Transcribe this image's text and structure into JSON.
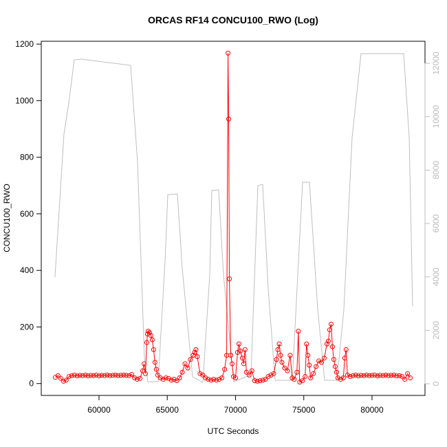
{
  "chart_data": {
    "type": "line",
    "title": "ORCAS RF14 CONCU100_RWO (Log)",
    "x_label": "UTC Seconds",
    "y_label": "CONCU100_RWO",
    "xlim": [
      55770,
      83880
    ],
    "xticks": [
      60000,
      65000,
      70000,
      75000,
      80000
    ],
    "ylim": [
      -42,
      1210
    ],
    "yticks": [
      0,
      200,
      400,
      600,
      800,
      1000,
      1200
    ],
    "y2lim": [
      -438,
      12824
    ],
    "y2ticks": [
      0,
      2000,
      4000,
      6000,
      8000,
      10000,
      12000
    ],
    "y2_color": "#bbbbbb",
    "series": [
      {
        "color": "#ff0000",
        "marker": "circle",
        "x": [
          56800,
          57000,
          57200,
          57400,
          57600,
          57800,
          58000,
          58200,
          58400,
          58600,
          58800,
          59000,
          59200,
          59400,
          59600,
          59800,
          60000,
          60200,
          60400,
          60600,
          60800,
          61000,
          61200,
          61400,
          61600,
          61800,
          62000,
          62200,
          62400,
          62600,
          62800,
          63000,
          63200,
          63300,
          63400,
          63500,
          63550,
          63600,
          63700,
          63800,
          63900,
          64000,
          64100,
          64200,
          64300,
          64500,
          64700,
          64900,
          65100,
          65300,
          65500,
          65700,
          65900,
          66100,
          66300,
          66500,
          66700,
          66900,
          67000,
          67100,
          67200,
          67400,
          67600,
          67800,
          68000,
          68200,
          68400,
          68600,
          68800,
          69000,
          69200,
          69350,
          69450,
          69500,
          69550,
          69650,
          69750,
          69850,
          70000,
          70150,
          70250,
          70350,
          70500,
          70600,
          70700,
          70800,
          71000,
          71200,
          71400,
          71600,
          71800,
          72000,
          72200,
          72400,
          72600,
          72800,
          73000,
          73100,
          73200,
          73300,
          73400,
          73600,
          73800,
          74000,
          74150,
          74300,
          74500,
          74600,
          74700,
          74900,
          75100,
          75200,
          75300,
          75400,
          75500,
          75700,
          75900,
          76100,
          76300,
          76500,
          76700,
          76800,
          76900,
          77000,
          77100,
          77200,
          77300,
          77400,
          77500,
          77700,
          77900,
          78000,
          78100,
          78200,
          78400,
          78600,
          78800,
          79000,
          79200,
          79400,
          79600,
          79800,
          80000,
          80200,
          80400,
          80600,
          80800,
          81000,
          81200,
          81400,
          81600,
          81800,
          82000,
          82200,
          82400,
          82600,
          82800
        ],
        "values": [
          22,
          28,
          18,
          8,
          12,
          25,
          28,
          30,
          27,
          29,
          28,
          30,
          27,
          29,
          28,
          30,
          27,
          29,
          28,
          30,
          28,
          29,
          30,
          28,
          29,
          30,
          29,
          28,
          32,
          20,
          15,
          18,
          45,
          70,
          35,
          145,
          175,
          185,
          180,
          170,
          155,
          120,
          75,
          50,
          30,
          20,
          15,
          20,
          18,
          12,
          15,
          10,
          20,
          40,
          70,
          55,
          85,
          100,
          110,
          120,
          95,
          35,
          30,
          20,
          15,
          12,
          15,
          12,
          15,
          20,
          50,
          100,
          1168,
          935,
          370,
          100,
          70,
          25,
          20,
          110,
          140,
          115,
          90,
          70,
          120,
          40,
          30,
          45,
          10,
          8,
          10,
          12,
          15,
          25,
          30,
          35,
          85,
          120,
          140,
          100,
          75,
          55,
          45,
          100,
          20,
          15,
          40,
          185,
          5,
          10,
          25,
          140,
          100,
          65,
          20,
          35,
          60,
          80,
          75,
          90,
          140,
          150,
          190,
          210,
          130,
          85,
          60,
          40,
          20,
          15,
          20,
          90,
          120,
          30,
          25,
          28,
          30,
          27,
          29,
          28,
          30,
          28,
          29,
          30,
          27,
          29,
          28,
          30,
          28,
          29,
          30,
          27,
          28,
          25,
          15,
          35,
          20
        ]
      },
      {
        "color": "#bebebe",
        "axis": "y2",
        "x": [
          56776,
          57430,
          57783,
          58186,
          58690,
          62317,
          62821,
          63325,
          63577,
          64333,
          64837,
          65038,
          65743,
          66096,
          66852,
          67607,
          68111,
          68262,
          68766,
          69119,
          69875,
          71134,
          71638,
          71991,
          72394,
          72898,
          74157,
          74913,
          75417,
          76021,
          76525,
          77432,
          77936,
          78541,
          79195,
          82319,
          82722,
          82974
        ],
        "values": [
          3991,
          9347,
          10506,
          12128,
          12154,
          11922,
          8317,
          978,
          77,
          77,
          4583,
          7081,
          7107,
          4326,
          257,
          51,
          4068,
          7236,
          7262,
          4068,
          77,
          335,
          7416,
          7468,
          3554,
          129,
          129,
          7545,
          7545,
          2781,
          129,
          129,
          2781,
          9219,
          12360,
          12360,
          9219,
          2910
        ]
      }
    ]
  }
}
